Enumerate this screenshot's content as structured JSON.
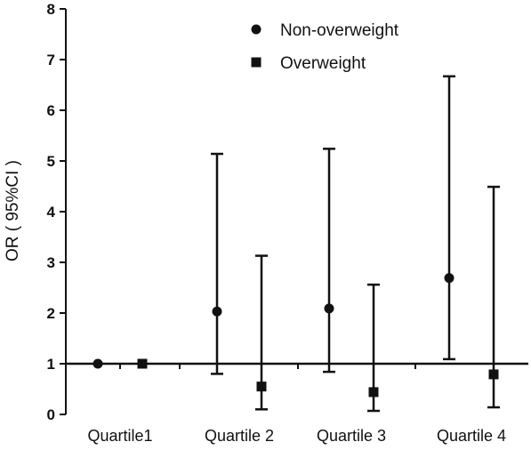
{
  "chart_data": {
    "type": "scatter",
    "title": "",
    "xlabel": "",
    "ylabel": "OR ( 95%CI )",
    "ylim": [
      0,
      8
    ],
    "yticks": [
      0,
      1,
      2,
      3,
      4,
      5,
      6,
      7,
      8
    ],
    "reference_line_y": 1,
    "grid": false,
    "legend_position": "top-right",
    "categories": [
      "Quartile1",
      "Quartile 2",
      "Quartile 3",
      "Quartile 4"
    ],
    "series": [
      {
        "name": "Non-overweight",
        "marker": "circle",
        "color": "#111111",
        "values": [
          1.0,
          2.03,
          2.09,
          2.69
        ],
        "ci_low": [
          null,
          0.8,
          0.84,
          1.09
        ],
        "ci_high": [
          null,
          5.14,
          5.24,
          6.67
        ]
      },
      {
        "name": "Overweight",
        "marker": "square",
        "color": "#111111",
        "values": [
          1.0,
          0.55,
          0.44,
          0.79
        ],
        "ci_low": [
          null,
          0.1,
          0.07,
          0.14
        ],
        "ci_high": [
          null,
          3.13,
          2.56,
          4.49
        ]
      }
    ]
  }
}
